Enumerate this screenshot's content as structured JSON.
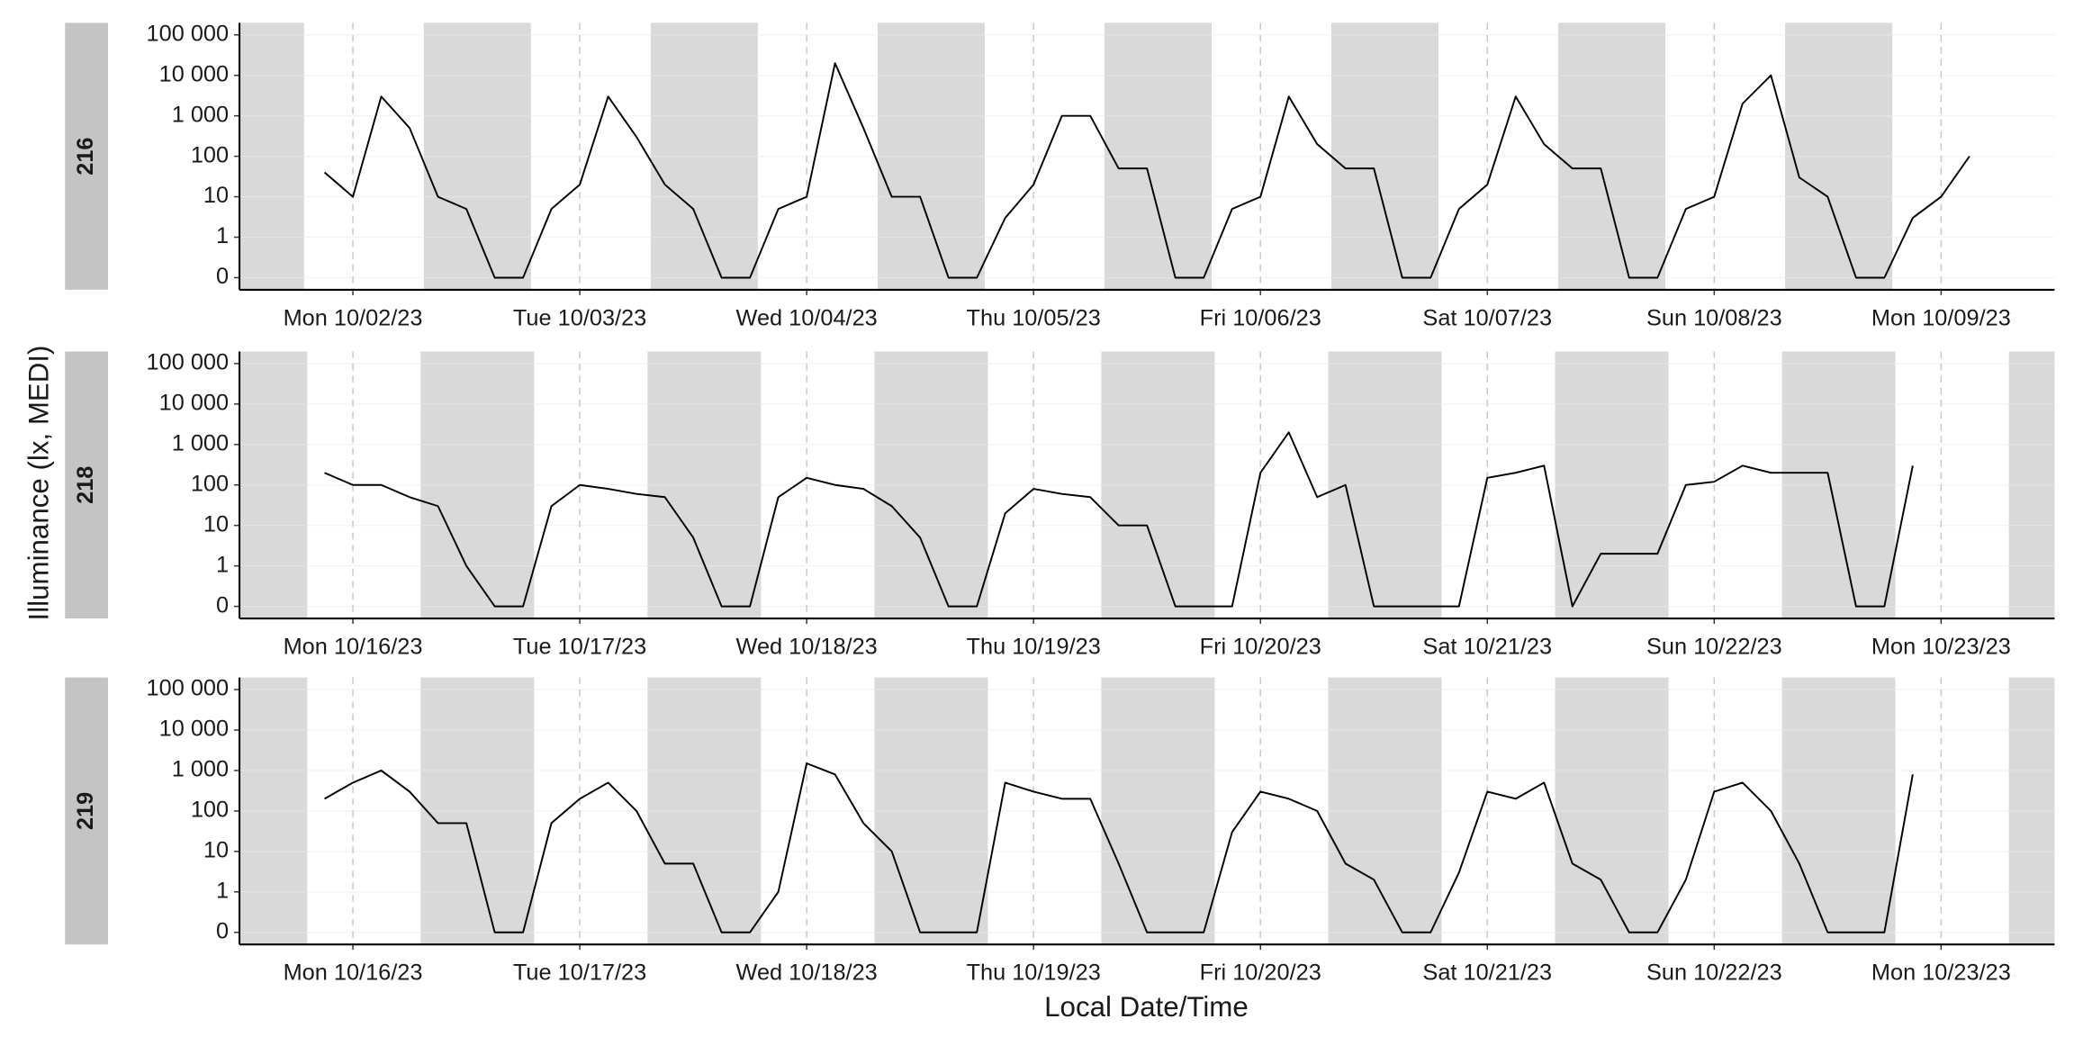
{
  "chart_data": {
    "type": "line",
    "ylabel": "Illuminance (lx, MEDI)",
    "xlabel": "Local Date/Time",
    "yscale": "symlog",
    "ylim": [
      0,
      100000
    ],
    "yticks": [
      0,
      1,
      10,
      100,
      {
        "value": 1000,
        "label": "1 000"
      },
      {
        "value": 10000,
        "label": "10 000"
      },
      {
        "value": 100000,
        "label": "100 000"
      }
    ],
    "grid": true,
    "color": "#000000",
    "band_color": "#d9d9d9",
    "strip_color": "#c4c4c4",
    "panels": [
      {
        "label": "216",
        "xlim": [
          "2023-10-01T12:00",
          "2023-10-09T12:00"
        ],
        "xticks": [
          {
            "value": "2023-10-02T00:00",
            "label": "Mon 10/02/23"
          },
          {
            "value": "2023-10-03T00:00",
            "label": "Tue 10/03/23"
          },
          {
            "value": "2023-10-04T00:00",
            "label": "Wed 10/04/23"
          },
          {
            "value": "2023-10-05T00:00",
            "label": "Thu 10/05/23"
          },
          {
            "value": "2023-10-06T00:00",
            "label": "Fri 10/06/23"
          },
          {
            "value": "2023-10-07T00:00",
            "label": "Sat 10/07/23"
          },
          {
            "value": "2023-10-08T00:00",
            "label": "Sun 10/08/23"
          },
          {
            "value": "2023-10-09T00:00",
            "label": "Mon 10/09/23"
          }
        ],
        "bands": [
          [
            "2023-10-01T12:00",
            "2023-10-01T18:50"
          ],
          [
            "2023-10-02T07:30",
            "2023-10-02T18:50"
          ],
          [
            "2023-10-03T07:30",
            "2023-10-03T18:50"
          ],
          [
            "2023-10-04T07:30",
            "2023-10-04T18:50"
          ],
          [
            "2023-10-05T07:30",
            "2023-10-05T18:50"
          ],
          [
            "2023-10-06T07:30",
            "2023-10-06T18:50"
          ],
          [
            "2023-10-07T07:30",
            "2023-10-07T18:50"
          ],
          [
            "2023-10-08T07:30",
            "2023-10-08T18:50"
          ]
        ],
        "x": [
          "2023-10-01T21:00",
          "2023-10-02T00:00",
          "2023-10-02T03:00",
          "2023-10-02T06:00",
          "2023-10-02T09:00",
          "2023-10-02T12:00",
          "2023-10-02T15:00",
          "2023-10-02T18:00",
          "2023-10-02T21:00",
          "2023-10-03T00:00",
          "2023-10-03T03:00",
          "2023-10-03T06:00",
          "2023-10-03T09:00",
          "2023-10-03T12:00",
          "2023-10-03T15:00",
          "2023-10-03T18:00",
          "2023-10-03T21:00",
          "2023-10-04T00:00",
          "2023-10-04T03:00",
          "2023-10-04T06:00",
          "2023-10-04T09:00",
          "2023-10-04T12:00",
          "2023-10-04T15:00",
          "2023-10-04T18:00",
          "2023-10-04T21:00",
          "2023-10-05T00:00",
          "2023-10-05T03:00",
          "2023-10-05T06:00",
          "2023-10-05T09:00",
          "2023-10-05T12:00",
          "2023-10-05T15:00",
          "2023-10-05T18:00",
          "2023-10-05T21:00",
          "2023-10-06T00:00",
          "2023-10-06T03:00",
          "2023-10-06T06:00",
          "2023-10-06T09:00",
          "2023-10-06T12:00",
          "2023-10-06T15:00",
          "2023-10-06T18:00",
          "2023-10-06T21:00",
          "2023-10-07T00:00",
          "2023-10-07T03:00",
          "2023-10-07T06:00",
          "2023-10-07T09:00",
          "2023-10-07T12:00",
          "2023-10-07T15:00",
          "2023-10-07T18:00",
          "2023-10-07T21:00",
          "2023-10-08T00:00",
          "2023-10-08T03:00",
          "2023-10-08T06:00",
          "2023-10-08T09:00",
          "2023-10-08T12:00",
          "2023-10-08T15:00",
          "2023-10-08T18:00",
          "2023-10-08T21:00",
          "2023-10-09T00:00",
          "2023-10-09T03:00"
        ],
        "values": [
          40,
          10,
          3000,
          500,
          10,
          5,
          0,
          0,
          5,
          20,
          3000,
          300,
          20,
          5,
          0,
          0,
          5,
          10,
          20000,
          500,
          10,
          10,
          0,
          0,
          3,
          20,
          1000,
          1000,
          50,
          50,
          0,
          0,
          5,
          10,
          3000,
          200,
          50,
          50,
          0,
          0,
          5,
          20,
          3000,
          200,
          50,
          50,
          0,
          0,
          5,
          10,
          2000,
          10000,
          30,
          10,
          0,
          0,
          3,
          10,
          100
        ]
      },
      {
        "label": "218",
        "xlim": [
          "2023-10-15T12:00",
          "2023-10-23T12:00"
        ],
        "xticks": [
          {
            "value": "2023-10-16T00:00",
            "label": "Mon 10/16/23"
          },
          {
            "value": "2023-10-17T00:00",
            "label": "Tue 10/17/23"
          },
          {
            "value": "2023-10-18T00:00",
            "label": "Wed 10/18/23"
          },
          {
            "value": "2023-10-19T00:00",
            "label": "Thu 10/19/23"
          },
          {
            "value": "2023-10-20T00:00",
            "label": "Fri 10/20/23"
          },
          {
            "value": "2023-10-21T00:00",
            "label": "Sat 10/21/23"
          },
          {
            "value": "2023-10-22T00:00",
            "label": "Sun 10/22/23"
          },
          {
            "value": "2023-10-23T00:00",
            "label": "Mon 10/23/23"
          }
        ],
        "bands": [
          [
            "2023-10-15T12:00",
            "2023-10-15T19:10"
          ],
          [
            "2023-10-16T07:10",
            "2023-10-16T19:10"
          ],
          [
            "2023-10-17T07:10",
            "2023-10-17T19:10"
          ],
          [
            "2023-10-18T07:10",
            "2023-10-18T19:10"
          ],
          [
            "2023-10-19T07:10",
            "2023-10-19T19:10"
          ],
          [
            "2023-10-20T07:10",
            "2023-10-20T19:10"
          ],
          [
            "2023-10-21T07:10",
            "2023-10-21T19:10"
          ],
          [
            "2023-10-22T07:10",
            "2023-10-22T19:10"
          ],
          [
            "2023-10-23T07:10",
            "2023-10-23T12:00"
          ]
        ],
        "x": [
          "2023-10-15T21:00",
          "2023-10-16T00:00",
          "2023-10-16T03:00",
          "2023-10-16T06:00",
          "2023-10-16T09:00",
          "2023-10-16T12:00",
          "2023-10-16T15:00",
          "2023-10-16T18:00",
          "2023-10-16T21:00",
          "2023-10-17T00:00",
          "2023-10-17T03:00",
          "2023-10-17T06:00",
          "2023-10-17T09:00",
          "2023-10-17T12:00",
          "2023-10-17T15:00",
          "2023-10-17T18:00",
          "2023-10-17T21:00",
          "2023-10-18T00:00",
          "2023-10-18T03:00",
          "2023-10-18T06:00",
          "2023-10-18T09:00",
          "2023-10-18T12:00",
          "2023-10-18T15:00",
          "2023-10-18T18:00",
          "2023-10-18T21:00",
          "2023-10-19T00:00",
          "2023-10-19T03:00",
          "2023-10-19T06:00",
          "2023-10-19T09:00",
          "2023-10-19T12:00",
          "2023-10-19T15:00",
          "2023-10-19T18:00",
          "2023-10-19T21:00",
          "2023-10-20T00:00",
          "2023-10-20T03:00",
          "2023-10-20T06:00",
          "2023-10-20T09:00",
          "2023-10-20T12:00",
          "2023-10-20T15:00",
          "2023-10-20T18:00",
          "2023-10-20T21:00",
          "2023-10-21T00:00",
          "2023-10-21T03:00",
          "2023-10-21T06:00",
          "2023-10-21T09:00",
          "2023-10-21T12:00",
          "2023-10-21T15:00",
          "2023-10-21T18:00",
          "2023-10-21T21:00",
          "2023-10-22T00:00",
          "2023-10-22T03:00",
          "2023-10-22T06:00",
          "2023-10-22T09:00",
          "2023-10-22T12:00",
          "2023-10-22T15:00",
          "2023-10-22T18:00",
          "2023-10-22T21:00"
        ],
        "values": [
          200,
          100,
          100,
          50,
          30,
          1,
          0,
          0,
          30,
          100,
          80,
          60,
          50,
          5,
          0,
          0,
          50,
          150,
          100,
          80,
          30,
          5,
          0,
          0,
          20,
          80,
          60,
          50,
          10,
          10,
          0,
          0,
          0,
          200,
          2000,
          50,
          100,
          0,
          0,
          0,
          0,
          150,
          200,
          300,
          0,
          2,
          2,
          2,
          100,
          120,
          300,
          200,
          200,
          200,
          0,
          0,
          300
        ]
      },
      {
        "label": "219",
        "xlim": [
          "2023-10-15T12:00",
          "2023-10-23T12:00"
        ],
        "xticks": [
          {
            "value": "2023-10-16T00:00",
            "label": "Mon 10/16/23"
          },
          {
            "value": "2023-10-17T00:00",
            "label": "Tue 10/17/23"
          },
          {
            "value": "2023-10-18T00:00",
            "label": "Wed 10/18/23"
          },
          {
            "value": "2023-10-19T00:00",
            "label": "Thu 10/19/23"
          },
          {
            "value": "2023-10-20T00:00",
            "label": "Fri 10/20/23"
          },
          {
            "value": "2023-10-21T00:00",
            "label": "Sat 10/21/23"
          },
          {
            "value": "2023-10-22T00:00",
            "label": "Sun 10/22/23"
          },
          {
            "value": "2023-10-23T00:00",
            "label": "Mon 10/23/23"
          }
        ],
        "bands": [
          [
            "2023-10-15T12:00",
            "2023-10-15T19:10"
          ],
          [
            "2023-10-16T07:10",
            "2023-10-16T19:10"
          ],
          [
            "2023-10-17T07:10",
            "2023-10-17T19:10"
          ],
          [
            "2023-10-18T07:10",
            "2023-10-18T19:10"
          ],
          [
            "2023-10-19T07:10",
            "2023-10-19T19:10"
          ],
          [
            "2023-10-20T07:10",
            "2023-10-20T19:10"
          ],
          [
            "2023-10-21T07:10",
            "2023-10-21T19:10"
          ],
          [
            "2023-10-22T07:10",
            "2023-10-22T19:10"
          ],
          [
            "2023-10-23T07:10",
            "2023-10-23T12:00"
          ]
        ],
        "x": [
          "2023-10-15T21:00",
          "2023-10-16T00:00",
          "2023-10-16T03:00",
          "2023-10-16T06:00",
          "2023-10-16T09:00",
          "2023-10-16T12:00",
          "2023-10-16T15:00",
          "2023-10-16T18:00",
          "2023-10-16T21:00",
          "2023-10-17T00:00",
          "2023-10-17T03:00",
          "2023-10-17T06:00",
          "2023-10-17T09:00",
          "2023-10-17T12:00",
          "2023-10-17T15:00",
          "2023-10-17T18:00",
          "2023-10-17T21:00",
          "2023-10-18T00:00",
          "2023-10-18T03:00",
          "2023-10-18T06:00",
          "2023-10-18T09:00",
          "2023-10-18T12:00",
          "2023-10-18T15:00",
          "2023-10-18T18:00",
          "2023-10-18T21:00",
          "2023-10-19T00:00",
          "2023-10-19T03:00",
          "2023-10-19T06:00",
          "2023-10-19T09:00",
          "2023-10-19T12:00",
          "2023-10-19T15:00",
          "2023-10-19T18:00",
          "2023-10-19T21:00",
          "2023-10-20T00:00",
          "2023-10-20T03:00",
          "2023-10-20T06:00",
          "2023-10-20T09:00",
          "2023-10-20T12:00",
          "2023-10-20T15:00",
          "2023-10-20T18:00",
          "2023-10-20T21:00",
          "2023-10-21T00:00",
          "2023-10-21T03:00",
          "2023-10-21T06:00",
          "2023-10-21T09:00",
          "2023-10-21T12:00",
          "2023-10-21T15:00",
          "2023-10-21T18:00",
          "2023-10-21T21:00",
          "2023-10-22T00:00",
          "2023-10-22T03:00",
          "2023-10-22T06:00",
          "2023-10-22T09:00",
          "2023-10-22T12:00",
          "2023-10-22T15:00",
          "2023-10-22T18:00",
          "2023-10-22T21:00"
        ],
        "values": [
          200,
          500,
          1000,
          300,
          50,
          50,
          0,
          0,
          50,
          200,
          500,
          100,
          5,
          5,
          0,
          0,
          1,
          1500,
          800,
          50,
          10,
          0,
          0,
          0,
          500,
          300,
          200,
          200,
          5,
          0,
          0,
          0,
          30,
          300,
          200,
          100,
          5,
          2,
          0,
          0,
          3,
          300,
          200,
          500,
          5,
          2,
          0,
          0,
          2,
          300,
          500,
          100,
          5,
          0,
          0,
          0,
          800
        ]
      }
    ]
  }
}
